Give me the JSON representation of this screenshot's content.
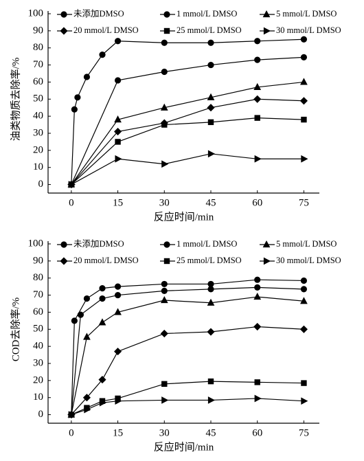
{
  "chart_data": [
    {
      "type": "line",
      "y_label": "油类物质去除率/%",
      "x_label": "反应时间/min",
      "xlim": [
        -7.5,
        80
      ],
      "ylim": [
        -5,
        100
      ],
      "xticks": [
        0,
        15,
        30,
        45,
        60,
        75
      ],
      "yticks": [
        0,
        10,
        20,
        30,
        40,
        50,
        60,
        70,
        80,
        90,
        100
      ],
      "series": [
        {
          "name": "未添加DMSO",
          "color": "#000000",
          "marker": "circle",
          "x": [
            0,
            1,
            2,
            5,
            10,
            15,
            30,
            45,
            60,
            75
          ],
          "values": [
            0,
            44,
            51,
            63,
            76,
            84,
            83,
            83,
            84,
            85
          ]
        },
        {
          "name": "1 mmol/L DMSO",
          "color": "#000000",
          "marker": "circle",
          "x": [
            0,
            15,
            30,
            45,
            60,
            75
          ],
          "values": [
            0,
            61,
            66,
            70,
            73,
            74.5
          ]
        },
        {
          "name": "5 mmol/L DMSO",
          "color": "#000000",
          "marker": "triangle",
          "x": [
            0,
            15,
            30,
            45,
            60,
            75
          ],
          "values": [
            0,
            38,
            45,
            51,
            57,
            60
          ]
        },
        {
          "name": "20 mmol/L DMSO",
          "color": "#000000",
          "marker": "diamond",
          "x": [
            0,
            15,
            30,
            45,
            60,
            75
          ],
          "values": [
            0,
            31,
            36,
            45,
            50,
            49
          ]
        },
        {
          "name": "25 mmol/L DMSO",
          "color": "#000000",
          "marker": "square",
          "x": [
            0,
            15,
            30,
            45,
            60,
            75
          ],
          "values": [
            0,
            25,
            35,
            36.5,
            39,
            38
          ]
        },
        {
          "name": "30 mmol/L DMSO",
          "color": "#000000",
          "marker": "right-triangle",
          "x": [
            0,
            15,
            30,
            45,
            60,
            75
          ],
          "values": [
            0,
            15,
            12,
            18,
            15,
            15
          ]
        }
      ]
    },
    {
      "type": "line",
      "y_label": "COD去除率/%",
      "x_label": "反应时间/min",
      "xlim": [
        -7.5,
        80
      ],
      "ylim": [
        -5,
        100
      ],
      "xticks": [
        0,
        15,
        30,
        45,
        60,
        75
      ],
      "yticks": [
        0,
        10,
        20,
        30,
        40,
        50,
        60,
        70,
        80,
        90,
        100
      ],
      "series": [
        {
          "name": "未添加DMSO",
          "color": "#000000",
          "marker": "circle",
          "x": [
            0,
            1,
            5,
            10,
            15,
            30,
            45,
            60,
            75
          ],
          "values": [
            0,
            55,
            68,
            74,
            75,
            76.5,
            76.5,
            79,
            78.5
          ]
        },
        {
          "name": "1 mmol/L DMSO",
          "color": "#000000",
          "marker": "circle",
          "x": [
            0,
            3,
            10,
            15,
            30,
            45,
            60,
            75
          ],
          "values": [
            0,
            58.5,
            68,
            70,
            72.5,
            73.5,
            74.5,
            73.5
          ]
        },
        {
          "name": "5 mmol/L DMSO",
          "color": "#000000",
          "marker": "triangle",
          "x": [
            0,
            5,
            10,
            15,
            30,
            45,
            60,
            75
          ],
          "values": [
            0,
            45.5,
            54,
            60,
            67,
            65.5,
            69,
            66.5
          ]
        },
        {
          "name": "20 mmol/L DMSO",
          "color": "#000000",
          "marker": "diamond",
          "x": [
            0,
            5,
            10,
            15,
            30,
            45,
            60,
            75
          ],
          "values": [
            0,
            10,
            20.5,
            37,
            47.5,
            48.5,
            51.5,
            50
          ]
        },
        {
          "name": "25 mmol/L DMSO",
          "color": "#000000",
          "marker": "square",
          "x": [
            0,
            5,
            10,
            15,
            30,
            45,
            60,
            75
          ],
          "values": [
            0,
            4,
            8,
            9.5,
            18,
            19.5,
            19,
            18.5
          ]
        },
        {
          "name": "30 mmol/L DMSO",
          "color": "#000000",
          "marker": "right-triangle",
          "x": [
            0,
            5,
            10,
            15,
            30,
            45,
            60,
            75
          ],
          "values": [
            0,
            3,
            7,
            8,
            8.5,
            8.5,
            9.5,
            8
          ]
        }
      ]
    }
  ]
}
